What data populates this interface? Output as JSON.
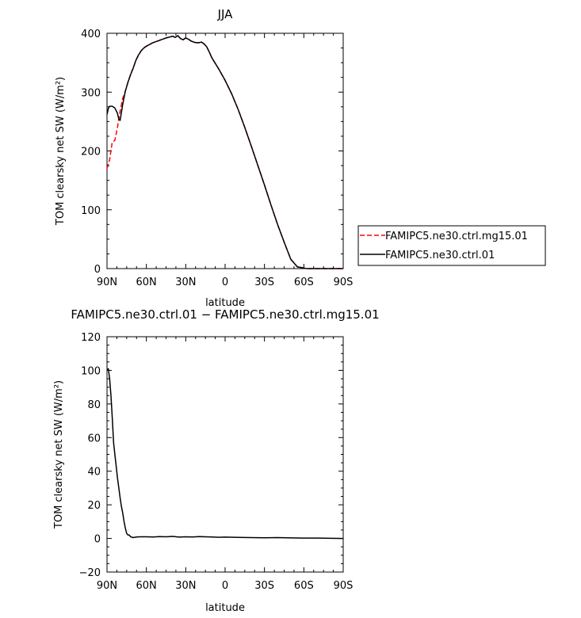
{
  "chart_data": [
    {
      "type": "line",
      "title": "JJA",
      "xlabel": "latitude",
      "ylabel": "TOM clearsky net SW (W/m²)",
      "xlim": [
        90,
        -90
      ],
      "ylim": [
        0,
        400
      ],
      "xticks": [
        {
          "value": 90,
          "label": "90N"
        },
        {
          "value": 60,
          "label": "60N"
        },
        {
          "value": 30,
          "label": "30N"
        },
        {
          "value": 0,
          "label": "0"
        },
        {
          "value": -30,
          "label": "30S"
        },
        {
          "value": -60,
          "label": "60S"
        },
        {
          "value": -90,
          "label": "90S"
        }
      ],
      "yticks": [
        0,
        100,
        200,
        300,
        400
      ],
      "legend": "right",
      "series": [
        {
          "name": "FAMIPC5.ne30.ctrl.mg15.01",
          "color": "#ff0000",
          "style": "dashed",
          "x": [
            90,
            88,
            86,
            84,
            82,
            80,
            78,
            76,
            74,
            72,
            70,
            68,
            66,
            64,
            62,
            60,
            55,
            50,
            45,
            40,
            38,
            36,
            34,
            32,
            30,
            28,
            26,
            24,
            22,
            20,
            18,
            16,
            14,
            12,
            10,
            5,
            0,
            -5,
            -10,
            -15,
            -20,
            -25,
            -30,
            -35,
            -40,
            -45,
            -50,
            -55,
            -60,
            -62,
            -64,
            -66,
            -68,
            -70,
            -72,
            -75,
            -80,
            -85,
            -90
          ],
          "y": [
            170,
            185,
            215,
            218,
            240,
            268,
            290,
            302,
            317,
            330,
            341,
            354,
            363,
            370,
            375,
            378,
            384,
            388,
            392,
            395,
            393,
            396,
            391,
            389,
            392,
            390,
            387,
            385,
            384,
            384,
            385,
            382,
            377,
            368,
            358,
            340,
            320,
            297,
            270,
            240,
            208,
            175,
            142,
            108,
            75,
            45,
            16,
            3,
            1,
            0,
            0,
            0,
            0,
            0,
            0,
            0,
            0,
            0,
            0
          ]
        },
        {
          "name": "FAMIPC5.ne30.ctrl.01",
          "color": "#000000",
          "style": "solid",
          "x": [
            90,
            89,
            88,
            86,
            84,
            82,
            81,
            80,
            78,
            76,
            74,
            72,
            70,
            68,
            66,
            64,
            62,
            60,
            55,
            50,
            45,
            40,
            38,
            36,
            34,
            32,
            30,
            28,
            26,
            24,
            22,
            20,
            18,
            16,
            14,
            12,
            10,
            5,
            0,
            -5,
            -10,
            -15,
            -20,
            -25,
            -30,
            -35,
            -40,
            -45,
            -50,
            -55,
            -60,
            -62,
            -64,
            -66,
            -68,
            -70,
            -72,
            -75,
            -80,
            -85,
            -90
          ],
          "y": [
            262,
            272,
            276,
            276,
            273,
            264,
            254,
            252,
            280,
            302,
            317,
            330,
            341,
            354,
            363,
            370,
            375,
            378,
            384,
            388,
            392,
            395,
            393,
            396,
            391,
            389,
            392,
            390,
            387,
            385,
            384,
            384,
            385,
            382,
            377,
            368,
            358,
            340,
            320,
            297,
            270,
            240,
            208,
            175,
            142,
            108,
            75,
            45,
            16,
            3,
            1,
            0,
            0,
            0,
            0,
            0,
            0,
            0,
            0,
            0,
            0
          ]
        }
      ]
    },
    {
      "type": "line",
      "title": "FAMIPC5.ne30.ctrl.01 − FAMIPC5.ne30.ctrl.mg15.01",
      "xlabel": "latitude",
      "ylabel": "TOM clearsky net SW (W/m²)",
      "xlim": [
        90,
        -90
      ],
      "ylim": [
        -20,
        120
      ],
      "xticks": [
        {
          "value": 90,
          "label": "90N"
        },
        {
          "value": 60,
          "label": "60N"
        },
        {
          "value": 30,
          "label": "30N"
        },
        {
          "value": 0,
          "label": "0"
        },
        {
          "value": -30,
          "label": "30S"
        },
        {
          "value": -60,
          "label": "60S"
        },
        {
          "value": -90,
          "label": "90S"
        }
      ],
      "yticks": [
        -20,
        0,
        20,
        40,
        60,
        80,
        100,
        120
      ],
      "series": [
        {
          "color": "#000000",
          "style": "solid",
          "x": [
            90,
            89,
            88,
            87,
            86,
            85,
            84,
            83,
            82,
            81,
            80,
            79,
            78,
            77,
            76,
            75,
            74,
            73,
            72,
            70,
            68,
            65,
            60,
            55,
            50,
            45,
            40,
            35,
            30,
            25,
            20,
            15,
            10,
            5,
            0,
            -10,
            -20,
            -30,
            -40,
            -50,
            -60,
            -70,
            -80,
            -90
          ],
          "y": [
            100,
            101,
            95,
            85,
            72,
            57,
            50,
            43,
            36,
            30,
            24,
            19,
            15,
            10,
            6,
            3,
            2,
            2,
            1,
            0.5,
            0.8,
            1,
            1,
            0.9,
            1.1,
            1,
            1.2,
            0.8,
            1,
            0.9,
            1.1,
            1,
            0.9,
            0.7,
            0.8,
            0.6,
            0.5,
            0.4,
            0.5,
            0.3,
            0.2,
            0.2,
            0.1,
            0
          ]
        }
      ]
    }
  ]
}
